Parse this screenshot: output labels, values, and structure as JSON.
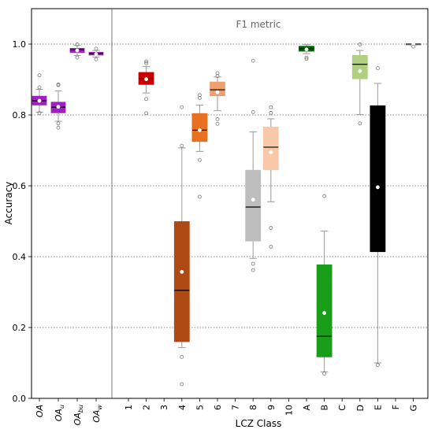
{
  "chart_data": {
    "type": "box",
    "title": "",
    "panel_label": "F1 metric",
    "ylabel": "Accuracy",
    "xlabel": "LCZ Class",
    "ylim": [
      0.0,
      1.1
    ],
    "yticks": [
      "0.0",
      "0.2",
      "0.4",
      "0.6",
      "0.8",
      "1.0"
    ],
    "ytick_values": [
      0.0,
      0.2,
      0.4,
      0.6,
      0.8,
      1.0
    ],
    "grid": "horizontal dotted",
    "groups": [
      {
        "name": "OA",
        "categories": [
          {
            "label": "OA",
            "sub": "",
            "color": "#a020c0",
            "q1": 0.828,
            "median": 0.84,
            "q3": 0.853,
            "mean": 0.84,
            "whisker_low": 0.808,
            "whisker_high": 0.872,
            "outliers": [
              0.912,
              0.878,
              0.805
            ]
          },
          {
            "label": "OA",
            "sub": "u",
            "color": "#a020c0",
            "q1": 0.806,
            "median": 0.822,
            "q3": 0.836,
            "mean": 0.823,
            "whisker_low": 0.782,
            "whisker_high": 0.868,
            "outliers": [
              0.886,
              0.884,
              0.776,
              0.764
            ]
          },
          {
            "label": "OA",
            "sub": "bu",
            "color": "#a020c0",
            "q1": 0.976,
            "median": 0.984,
            "q3": 0.988,
            "mean": 0.982,
            "whisker_low": 0.968,
            "whisker_high": 0.996,
            "outliers": [
              0.999,
              0.962
            ]
          },
          {
            "label": "OA",
            "sub": "w",
            "color": "#a020c0",
            "q1": 0.969,
            "median": 0.973,
            "q3": 0.977,
            "mean": 0.972,
            "whisker_low": 0.963,
            "whisker_high": 0.982,
            "outliers": [
              0.987,
              0.957
            ]
          }
        ]
      },
      {
        "name": "F1 metric",
        "categories": [
          {
            "label": "1",
            "sub": "",
            "color": null
          },
          {
            "label": "2",
            "sub": "",
            "color": "#cc0000",
            "q1": 0.886,
            "median": 0.903,
            "q3": 0.92,
            "mean": 0.901,
            "whisker_low": 0.862,
            "whisker_high": 0.937,
            "outliers": [
              0.951,
              0.946,
              0.845,
              0.805
            ]
          },
          {
            "label": "3",
            "sub": "",
            "color": null
          },
          {
            "label": "4",
            "sub": "",
            "color": "#b04a14",
            "q1": 0.16,
            "median": 0.305,
            "q3": 0.499,
            "mean": 0.357,
            "whisker_low": 0.143,
            "whisker_high": 0.707,
            "outliers": [
              0.822,
              0.713,
              0.117,
              0.04
            ]
          },
          {
            "label": "5",
            "sub": "",
            "color": "#e87020",
            "q1": 0.725,
            "median": 0.757,
            "q3": 0.804,
            "mean": 0.757,
            "whisker_low": 0.697,
            "whisker_high": 0.828,
            "outliers": [
              0.856,
              0.848,
              0.673,
              0.569
            ]
          },
          {
            "label": "6",
            "sub": "",
            "color": "#f0a070",
            "q1": 0.854,
            "median": 0.871,
            "q3": 0.893,
            "mean": 0.864,
            "whisker_low": 0.812,
            "whisker_high": 0.907,
            "outliers": [
              0.918,
              0.91,
              0.788,
              0.775
            ]
          },
          {
            "label": "7",
            "sub": "",
            "color": null
          },
          {
            "label": "8",
            "sub": "",
            "color": "#bdbdbd",
            "q1": 0.444,
            "median": 0.54,
            "q3": 0.644,
            "mean": 0.561,
            "whisker_low": 0.395,
            "whisker_high": 0.752,
            "outliers": [
              0.953,
              0.808,
              0.38,
              0.362
            ]
          },
          {
            "label": "9",
            "sub": "",
            "color": "#f8c8a8",
            "q1": 0.645,
            "median": 0.709,
            "q3": 0.766,
            "mean": 0.694,
            "whisker_low": 0.555,
            "whisker_high": 0.789,
            "outliers": [
              0.822,
              0.806,
              0.481,
              0.428
            ]
          },
          {
            "label": "10",
            "sub": "",
            "color": null
          },
          {
            "label": "A",
            "sub": "",
            "color": "#006400",
            "q1": 0.98,
            "median": 0.987,
            "q3": 0.994,
            "mean": 0.985,
            "whisker_low": 0.973,
            "whisker_high": 0.999,
            "outliers": [
              0.962,
              0.958
            ]
          },
          {
            "label": "B",
            "sub": "",
            "color": "#1a9e1a",
            "q1": 0.117,
            "median": 0.175,
            "q3": 0.377,
            "mean": 0.241,
            "whisker_low": 0.075,
            "whisker_high": 0.472,
            "outliers": [
              0.571,
              0.07
            ]
          },
          {
            "label": "C",
            "sub": "",
            "color": null
          },
          {
            "label": "D",
            "sub": "",
            "color": "#b0d080",
            "q1": 0.902,
            "median": 0.943,
            "q3": 0.968,
            "mean": 0.924,
            "whisker_low": 0.801,
            "whisker_high": 0.982,
            "outliers": [
              0.999,
              0.776
            ]
          },
          {
            "label": "E",
            "sub": "",
            "color": "#000000",
            "q1": 0.414,
            "median": 0.668,
            "q3": 0.826,
            "mean": 0.596,
            "whisker_low": 0.1,
            "whisker_high": 0.889,
            "outliers": [
              0.932,
              0.094
            ]
          },
          {
            "label": "F",
            "sub": "",
            "color": null
          },
          {
            "label": "G",
            "sub": "",
            "color": "#f4f4f4",
            "q1": 0.998,
            "median": 1.0,
            "q3": 1.0,
            "mean": 0.999,
            "whisker_low": 0.996,
            "whisker_high": 1.0,
            "outliers": [
              0.993
            ]
          }
        ]
      }
    ]
  }
}
